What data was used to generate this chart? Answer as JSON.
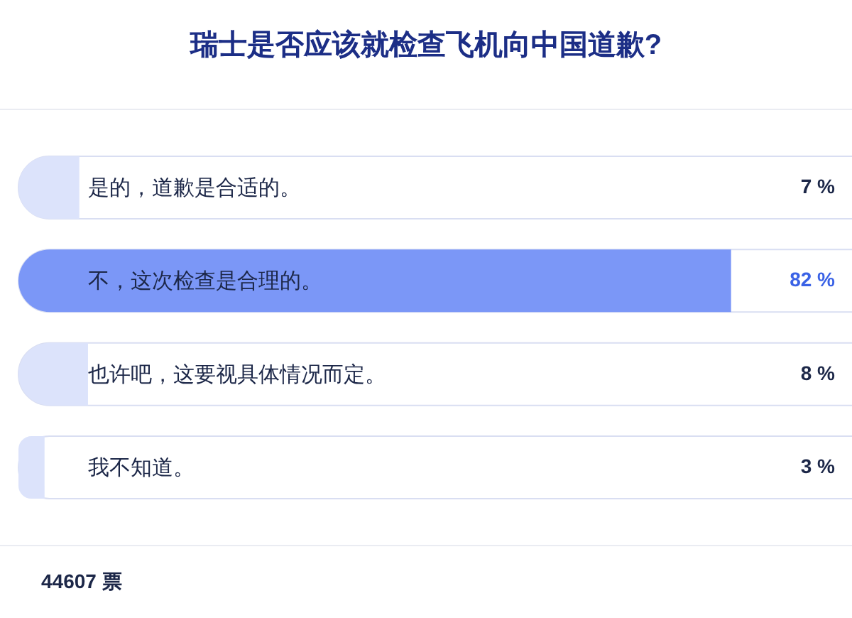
{
  "chart_data": {
    "type": "bar",
    "orientation": "horizontal",
    "title": "瑞士是否应该就检查飞机向中国道歉?",
    "categories": [
      "是的，道歉是合适的。",
      "不，这次检查是合理的。",
      "也许吧，这要视具体情况而定。",
      "我不知道。"
    ],
    "values": [
      7,
      82,
      8,
      3
    ],
    "colors": [
      "#dce3fb",
      "#7b97f7",
      "#dce3fb",
      "#dce3fb"
    ],
    "value_labels": [
      "7 %",
      "82 %",
      "8 %",
      "3 %"
    ],
    "xlim": [
      0,
      100
    ],
    "tick_labels": "y",
    "annotations": [
      "44607 票"
    ]
  }
}
